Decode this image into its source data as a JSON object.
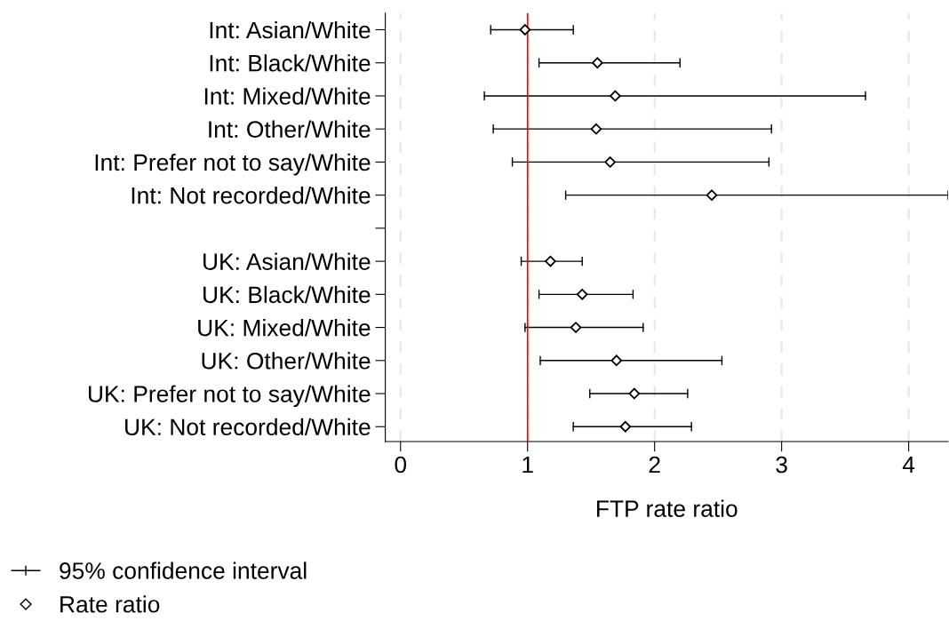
{
  "chart_data": {
    "type": "scatter",
    "orientation": "horizontal",
    "xlabel": "FTP rate ratio",
    "categories": [
      "Int: Asian/White",
      "Int: Black/White",
      "Int: Mixed/White",
      "Int: Other/White",
      "Int: Prefer not to say/White",
      "Int: Not recorded/White",
      null,
      "UK: Asian/White",
      "UK: Black/White",
      "UK: Mixed/White",
      "UK: Other/White",
      "UK: Prefer not to say/White",
      "UK: Not recorded/White"
    ],
    "series": [
      {
        "name": "Rate ratio",
        "color": "#000000",
        "marker": "diamond",
        "values": [
          0.98,
          1.55,
          1.69,
          1.54,
          1.65,
          2.45,
          null,
          1.18,
          1.43,
          1.38,
          1.7,
          1.84,
          1.77
        ],
        "errors": [
          [
            0.71,
            1.36
          ],
          [
            1.09,
            2.2
          ],
          [
            0.66,
            3.66
          ],
          [
            0.73,
            2.92
          ],
          [
            0.88,
            2.9
          ],
          [
            1.3,
            4.31
          ],
          null,
          [
            0.95,
            1.43
          ],
          [
            1.09,
            1.83
          ],
          [
            0.98,
            1.91
          ],
          [
            1.1,
            2.53
          ],
          [
            1.49,
            2.26
          ],
          [
            1.36,
            2.29
          ]
        ]
      }
    ],
    "annotations": [
      "95% confidence interval"
    ],
    "xlim": [
      -0.12,
      4.31
    ],
    "xticks": [
      0,
      1,
      2,
      3,
      4
    ],
    "grid": "x",
    "ref_lines": [
      {
        "axis": "x",
        "value": 1,
        "color": "#ff0000"
      }
    ],
    "legend": "bottom left"
  }
}
